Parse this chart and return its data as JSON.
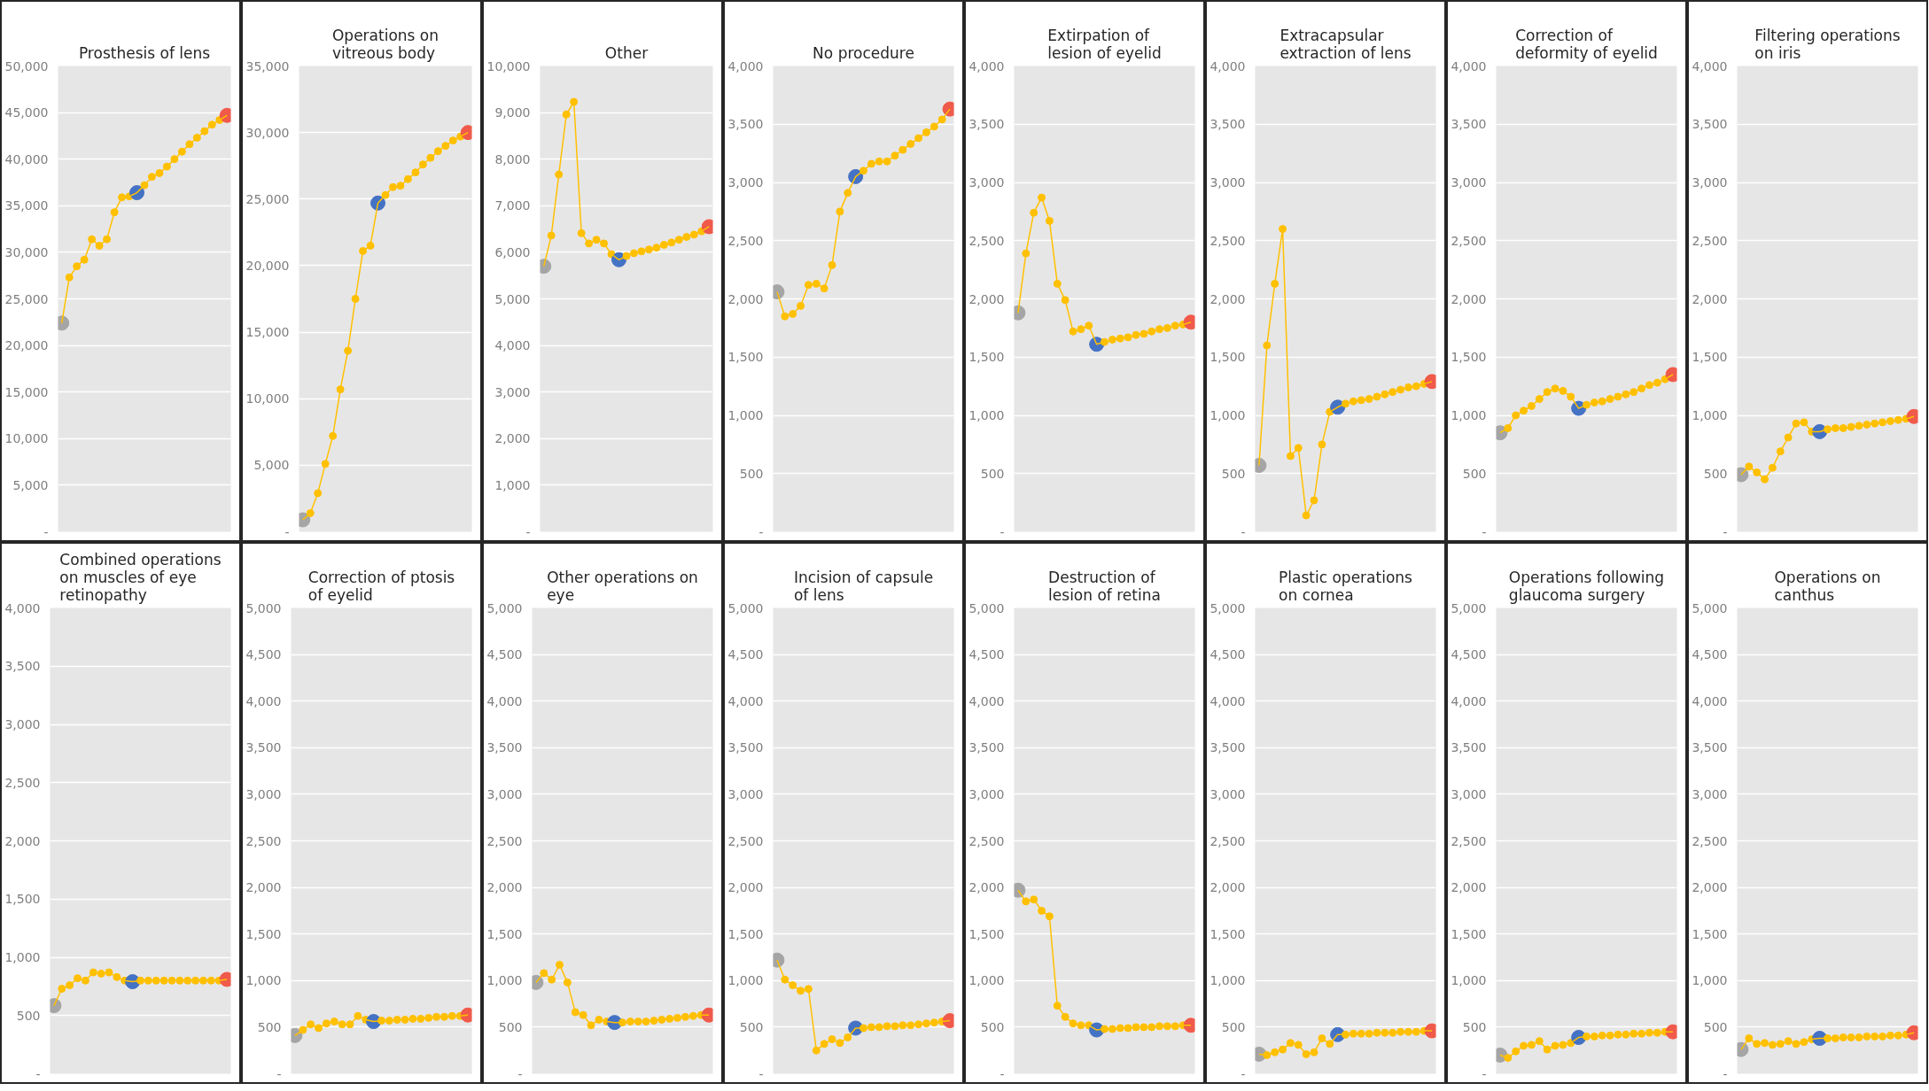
{
  "chart_data": [
    {
      "type": "line",
      "title": "Prosthesis of lens",
      "categories": [
        null,
        null,
        null,
        null,
        null,
        null,
        null,
        null,
        null,
        null,
        null,
        null,
        null,
        null,
        null,
        null,
        null,
        null,
        null,
        null,
        null,
        null,
        null
      ],
      "tick_labels": "y",
      "grid": "y",
      "marker": "circle",
      "ylim": [
        0,
        50000
      ],
      "yticks": [
        {
          "value": 0,
          "label": "-"
        },
        {
          "value": 5000,
          "label": "5,000"
        },
        {
          "value": 10000,
          "label": "10,000"
        },
        {
          "value": 15000,
          "label": "15,000"
        },
        {
          "value": 20000,
          "label": "20,000"
        },
        {
          "value": 25000,
          "label": "25,000"
        },
        {
          "value": 30000,
          "label": "30,000"
        },
        {
          "value": 35000,
          "label": "35,000"
        },
        {
          "value": 40000,
          "label": "40,000"
        },
        {
          "value": 45000,
          "label": "45,000"
        },
        {
          "value": 50000,
          "label": "50,000"
        }
      ],
      "series": [
        {
          "color": "#ffc000",
          "colors": [
            "#a5a5a5",
            "#ffc000",
            "#ffc000",
            "#ffc000",
            "#ffc000",
            "#ffc000",
            "#ffc000",
            "#ffc000",
            "#ffc000",
            "#ffc000",
            "#4472c4",
            "#ffc000",
            "#ffc000",
            "#ffc000",
            "#ffc000",
            "#ffc000",
            "#ffc000",
            "#ffc000",
            "#ffc000",
            "#ffc000",
            "#ffc000",
            "#ffc000",
            "#f05a4a"
          ],
          "values": [
            22400,
            27300,
            28500,
            29200,
            31400,
            30700,
            31400,
            34300,
            35900,
            36000,
            36400,
            37200,
            38100,
            38500,
            39200,
            40000,
            40800,
            41600,
            42300,
            43000,
            43700,
            44200,
            44700
          ]
        }
      ]
    },
    {
      "type": "line",
      "title": "Operations on vitreous body",
      "categories": [
        null,
        null,
        null,
        null,
        null,
        null,
        null,
        null,
        null,
        null,
        null,
        null,
        null,
        null,
        null,
        null,
        null,
        null,
        null,
        null,
        null,
        null,
        null
      ],
      "tick_labels": "y",
      "grid": "y",
      "marker": "circle",
      "ylim": [
        0,
        35000
      ],
      "yticks": [
        {
          "value": 0,
          "label": "-"
        },
        {
          "value": 5000,
          "label": "5,000"
        },
        {
          "value": 10000,
          "label": "10,000"
        },
        {
          "value": 15000,
          "label": "15,000"
        },
        {
          "value": 20000,
          "label": "20,000"
        },
        {
          "value": 25000,
          "label": "25,000"
        },
        {
          "value": 30000,
          "label": "30,000"
        },
        {
          "value": 35000,
          "label": "35,000"
        }
      ],
      "series": [
        {
          "color": "#ffc000",
          "colors": [
            "#a5a5a5",
            "#ffc000",
            "#ffc000",
            "#ffc000",
            "#ffc000",
            "#ffc000",
            "#ffc000",
            "#ffc000",
            "#ffc000",
            "#ffc000",
            "#4472c4",
            "#ffc000",
            "#ffc000",
            "#ffc000",
            "#ffc000",
            "#ffc000",
            "#ffc000",
            "#ffc000",
            "#ffc000",
            "#ffc000",
            "#ffc000",
            "#ffc000",
            "#f05a4a"
          ],
          "values": [
            900,
            1400,
            2900,
            5100,
            7200,
            10700,
            13600,
            17500,
            21100,
            21500,
            24700,
            25300,
            25900,
            26000,
            26500,
            27000,
            27600,
            28100,
            28600,
            29000,
            29400,
            29700,
            30000
          ]
        }
      ]
    },
    {
      "type": "line",
      "title": "Other",
      "categories": [
        null,
        null,
        null,
        null,
        null,
        null,
        null,
        null,
        null,
        null,
        null,
        null,
        null,
        null,
        null,
        null,
        null,
        null,
        null,
        null,
        null,
        null,
        null
      ],
      "tick_labels": "y",
      "grid": "y",
      "marker": "circle",
      "ylim": [
        0,
        10000
      ],
      "yticks": [
        {
          "value": 0,
          "label": "-"
        },
        {
          "value": 1000,
          "label": "1,000"
        },
        {
          "value": 2000,
          "label": "2,000"
        },
        {
          "value": 3000,
          "label": "3,000"
        },
        {
          "value": 4000,
          "label": "4,000"
        },
        {
          "value": 5000,
          "label": "5,000"
        },
        {
          "value": 6000,
          "label": "6,000"
        },
        {
          "value": 7000,
          "label": "7,000"
        },
        {
          "value": 8000,
          "label": "8,000"
        },
        {
          "value": 9000,
          "label": "9,000"
        },
        {
          "value": 10000,
          "label": "10,000"
        }
      ],
      "series": [
        {
          "color": "#ffc000",
          "colors": [
            "#a5a5a5",
            "#ffc000",
            "#ffc000",
            "#ffc000",
            "#ffc000",
            "#ffc000",
            "#ffc000",
            "#ffc000",
            "#ffc000",
            "#ffc000",
            "#4472c4",
            "#ffc000",
            "#ffc000",
            "#ffc000",
            "#ffc000",
            "#ffc000",
            "#ffc000",
            "#ffc000",
            "#ffc000",
            "#ffc000",
            "#ffc000",
            "#ffc000",
            "#f05a4a"
          ],
          "values": [
            5700,
            6360,
            7670,
            8960,
            9230,
            6410,
            6190,
            6270,
            6190,
            5960,
            5840,
            5920,
            5980,
            6020,
            6060,
            6100,
            6160,
            6210,
            6270,
            6330,
            6380,
            6450,
            6550
          ]
        }
      ]
    },
    {
      "type": "line",
      "title": "No procedure",
      "categories": [
        null,
        null,
        null,
        null,
        null,
        null,
        null,
        null,
        null,
        null,
        null,
        null,
        null,
        null,
        null,
        null,
        null,
        null,
        null,
        null,
        null,
        null,
        null
      ],
      "tick_labels": "y",
      "grid": "y",
      "marker": "circle",
      "ylim": [
        0,
        4000
      ],
      "yticks": [
        {
          "value": 0,
          "label": "-"
        },
        500,
        {
          "value": 1000,
          "label": "1,000"
        },
        {
          "value": 1500,
          "label": "1,500"
        },
        {
          "value": 2000,
          "label": "2,000"
        },
        {
          "value": 2500,
          "label": "2,500"
        },
        {
          "value": 3000,
          "label": "3,000"
        },
        {
          "value": 3500,
          "label": "3,500"
        },
        {
          "value": 4000,
          "label": "4,000"
        }
      ],
      "series": [
        {
          "color": "#ffc000",
          "colors": [
            "#a5a5a5",
            "#ffc000",
            "#ffc000",
            "#ffc000",
            "#ffc000",
            "#ffc000",
            "#ffc000",
            "#ffc000",
            "#ffc000",
            "#ffc000",
            "#4472c4",
            "#ffc000",
            "#ffc000",
            "#ffc000",
            "#ffc000",
            "#ffc000",
            "#ffc000",
            "#ffc000",
            "#ffc000",
            "#ffc000",
            "#ffc000",
            "#ffc000",
            "#f05a4a"
          ],
          "values": [
            2060,
            1850,
            1870,
            1940,
            2120,
            2130,
            2090,
            2290,
            2750,
            2910,
            3050,
            3100,
            3160,
            3180,
            3180,
            3230,
            3280,
            3330,
            3380,
            3430,
            3480,
            3540,
            3630
          ]
        }
      ]
    },
    {
      "type": "line",
      "title": "Extirpation of lesion of eyelid",
      "categories": [
        null,
        null,
        null,
        null,
        null,
        null,
        null,
        null,
        null,
        null,
        null,
        null,
        null,
        null,
        null,
        null,
        null,
        null,
        null,
        null,
        null,
        null,
        null
      ],
      "tick_labels": "y",
      "grid": "y",
      "marker": "circle",
      "ylim": [
        0,
        4000
      ],
      "yticks": [
        {
          "value": 0,
          "label": "-"
        },
        500,
        {
          "value": 1000,
          "label": "1,000"
        },
        {
          "value": 1500,
          "label": "1,500"
        },
        {
          "value": 2000,
          "label": "2,000"
        },
        {
          "value": 2500,
          "label": "2,500"
        },
        {
          "value": 3000,
          "label": "3,000"
        },
        {
          "value": 3500,
          "label": "3,500"
        },
        {
          "value": 4000,
          "label": "4,000"
        }
      ],
      "series": [
        {
          "color": "#ffc000",
          "colors": [
            "#a5a5a5",
            "#ffc000",
            "#ffc000",
            "#ffc000",
            "#ffc000",
            "#ffc000",
            "#ffc000",
            "#ffc000",
            "#ffc000",
            "#ffc000",
            "#4472c4",
            "#ffc000",
            "#ffc000",
            "#ffc000",
            "#ffc000",
            "#ffc000",
            "#ffc000",
            "#ffc000",
            "#ffc000",
            "#ffc000",
            "#ffc000",
            "#ffc000",
            "#f05a4a"
          ],
          "values": [
            1880,
            2390,
            2740,
            2870,
            2670,
            2130,
            1990,
            1720,
            1740,
            1770,
            1610,
            1630,
            1650,
            1660,
            1670,
            1690,
            1700,
            1720,
            1740,
            1750,
            1770,
            1780,
            1800
          ]
        }
      ]
    },
    {
      "type": "line",
      "title": "Extracapsular extraction of lens",
      "categories": [
        null,
        null,
        null,
        null,
        null,
        null,
        null,
        null,
        null,
        null,
        null,
        null,
        null,
        null,
        null,
        null,
        null,
        null,
        null,
        null,
        null,
        null,
        null
      ],
      "tick_labels": "y",
      "grid": "y",
      "marker": "circle",
      "ylim": [
        0,
        4000
      ],
      "yticks": [
        {
          "value": 0,
          "label": "-"
        },
        500,
        {
          "value": 1000,
          "label": "1,000"
        },
        {
          "value": 1500,
          "label": "1,500"
        },
        {
          "value": 2000,
          "label": "2,000"
        },
        {
          "value": 2500,
          "label": "2,500"
        },
        {
          "value": 3000,
          "label": "3,000"
        },
        {
          "value": 3500,
          "label": "3,500"
        },
        {
          "value": 4000,
          "label": "4,000"
        }
      ],
      "series": [
        {
          "color": "#ffc000",
          "colors": [
            "#a5a5a5",
            "#ffc000",
            "#ffc000",
            "#ffc000",
            "#ffc000",
            "#ffc000",
            "#ffc000",
            "#ffc000",
            "#ffc000",
            "#ffc000",
            "#4472c4",
            "#ffc000",
            "#ffc000",
            "#ffc000",
            "#ffc000",
            "#ffc000",
            "#ffc000",
            "#ffc000",
            "#ffc000",
            "#ffc000",
            "#ffc000",
            "#ffc000",
            "#f05a4a"
          ],
          "values": [
            570,
            1600,
            2130,
            2600,
            650,
            720,
            140,
            270,
            750,
            1030,
            1070,
            1100,
            1120,
            1130,
            1140,
            1160,
            1180,
            1200,
            1220,
            1240,
            1250,
            1270,
            1290
          ]
        }
      ]
    },
    {
      "type": "line",
      "title": "Correction of deformity of eyelid",
      "categories": [
        null,
        null,
        null,
        null,
        null,
        null,
        null,
        null,
        null,
        null,
        null,
        null,
        null,
        null,
        null,
        null,
        null,
        null,
        null,
        null,
        null,
        null,
        null
      ],
      "tick_labels": "y",
      "grid": "y",
      "marker": "circle",
      "ylim": [
        0,
        4000
      ],
      "yticks": [
        {
          "value": 0,
          "label": "-"
        },
        500,
        {
          "value": 1000,
          "label": "1,000"
        },
        {
          "value": 1500,
          "label": "1,500"
        },
        {
          "value": 2000,
          "label": "2,000"
        },
        {
          "value": 2500,
          "label": "2,500"
        },
        {
          "value": 3000,
          "label": "3,000"
        },
        {
          "value": 3500,
          "label": "3,500"
        },
        {
          "value": 4000,
          "label": "4,000"
        }
      ],
      "series": [
        {
          "color": "#ffc000",
          "colors": [
            "#a5a5a5",
            "#ffc000",
            "#ffc000",
            "#ffc000",
            "#ffc000",
            "#ffc000",
            "#ffc000",
            "#ffc000",
            "#ffc000",
            "#ffc000",
            "#4472c4",
            "#ffc000",
            "#ffc000",
            "#ffc000",
            "#ffc000",
            "#ffc000",
            "#ffc000",
            "#ffc000",
            "#ffc000",
            "#ffc000",
            "#ffc000",
            "#ffc000",
            "#f05a4a"
          ],
          "values": [
            850,
            890,
            1000,
            1040,
            1080,
            1140,
            1200,
            1230,
            1210,
            1160,
            1060,
            1090,
            1110,
            1120,
            1140,
            1160,
            1180,
            1200,
            1230,
            1260,
            1280,
            1310,
            1350
          ]
        }
      ]
    },
    {
      "type": "line",
      "title": "Filtering operations on iris",
      "categories": [
        null,
        null,
        null,
        null,
        null,
        null,
        null,
        null,
        null,
        null,
        null,
        null,
        null,
        null,
        null,
        null,
        null,
        null,
        null,
        null,
        null,
        null,
        null
      ],
      "tick_labels": "y",
      "grid": "y",
      "marker": "circle",
      "ylim": [
        0,
        4000
      ],
      "yticks": [
        {
          "value": 0,
          "label": "-"
        },
        500,
        {
          "value": 1000,
          "label": "1,000"
        },
        {
          "value": 1500,
          "label": "1,500"
        },
        {
          "value": 2000,
          "label": "2,000"
        },
        {
          "value": 2500,
          "label": "2,500"
        },
        {
          "value": 3000,
          "label": "3,000"
        },
        {
          "value": 3500,
          "label": "3,500"
        },
        {
          "value": 4000,
          "label": "4,000"
        }
      ],
      "series": [
        {
          "color": "#ffc000",
          "colors": [
            "#a5a5a5",
            "#ffc000",
            "#ffc000",
            "#ffc000",
            "#ffc000",
            "#ffc000",
            "#ffc000",
            "#ffc000",
            "#ffc000",
            "#ffc000",
            "#4472c4",
            "#ffc000",
            "#ffc000",
            "#ffc000",
            "#ffc000",
            "#ffc000",
            "#ffc000",
            "#ffc000",
            "#ffc000",
            "#ffc000",
            "#ffc000",
            "#ffc000",
            "#f05a4a"
          ],
          "values": [
            490,
            560,
            510,
            450,
            550,
            690,
            810,
            930,
            940,
            860,
            860,
            880,
            890,
            890,
            900,
            910,
            920,
            930,
            940,
            950,
            960,
            970,
            990
          ]
        }
      ]
    },
    {
      "type": "line",
      "title": "Combined operations on muscles of eye retinopathy",
      "categories": [
        null,
        null,
        null,
        null,
        null,
        null,
        null,
        null,
        null,
        null,
        null,
        null,
        null,
        null,
        null,
        null,
        null,
        null,
        null,
        null,
        null,
        null,
        null
      ],
      "tick_labels": "y",
      "grid": "y",
      "marker": "circle",
      "ylim": [
        0,
        4000
      ],
      "yticks": [
        {
          "value": 0,
          "label": "-"
        },
        500,
        {
          "value": 1000,
          "label": "1,000"
        },
        {
          "value": 1500,
          "label": "1,500"
        },
        {
          "value": 2000,
          "label": "2,000"
        },
        {
          "value": 2500,
          "label": "2,500"
        },
        {
          "value": 3000,
          "label": "3,000"
        },
        {
          "value": 3500,
          "label": "3,500"
        },
        {
          "value": 4000,
          "label": "4,000"
        }
      ],
      "series": [
        {
          "color": "#ffc000",
          "colors": [
            "#a5a5a5",
            "#ffc000",
            "#ffc000",
            "#ffc000",
            "#ffc000",
            "#ffc000",
            "#ffc000",
            "#ffc000",
            "#ffc000",
            "#ffc000",
            "#4472c4",
            "#ffc000",
            "#ffc000",
            "#ffc000",
            "#ffc000",
            "#ffc000",
            "#ffc000",
            "#ffc000",
            "#ffc000",
            "#ffc000",
            "#ffc000",
            "#ffc000",
            "#f05a4a"
          ],
          "values": [
            585,
            730,
            760,
            820,
            800,
            870,
            860,
            870,
            830,
            800,
            790,
            800,
            800,
            800,
            800,
            800,
            800,
            800,
            800,
            800,
            800,
            800,
            810
          ]
        }
      ]
    },
    {
      "type": "line",
      "title": "Correction of ptosis of eyelid",
      "categories": [
        null,
        null,
        null,
        null,
        null,
        null,
        null,
        null,
        null,
        null,
        null,
        null,
        null,
        null,
        null,
        null,
        null,
        null,
        null,
        null,
        null,
        null,
        null
      ],
      "tick_labels": "y",
      "grid": "y",
      "marker": "circle",
      "ylim": [
        0,
        5000
      ],
      "yticks": [
        {
          "value": 0,
          "label": "-"
        },
        500,
        {
          "value": 1000,
          "label": "1,000"
        },
        {
          "value": 1500,
          "label": "1,500"
        },
        {
          "value": 2000,
          "label": "2,000"
        },
        {
          "value": 2500,
          "label": "2,500"
        },
        {
          "value": 3000,
          "label": "3,000"
        },
        {
          "value": 3500,
          "label": "3,500"
        },
        {
          "value": 4000,
          "label": "4,000"
        },
        {
          "value": 4500,
          "label": "4,500"
        },
        {
          "value": 5000,
          "label": "5,000"
        }
      ],
      "series": [
        {
          "color": "#ffc000",
          "colors": [
            "#a5a5a5",
            "#ffc000",
            "#ffc000",
            "#ffc000",
            "#ffc000",
            "#ffc000",
            "#ffc000",
            "#ffc000",
            "#ffc000",
            "#ffc000",
            "#4472c4",
            "#ffc000",
            "#ffc000",
            "#ffc000",
            "#ffc000",
            "#ffc000",
            "#ffc000",
            "#ffc000",
            "#ffc000",
            "#ffc000",
            "#ffc000",
            "#ffc000",
            "#f05a4a"
          ],
          "values": [
            410,
            470,
            530,
            490,
            540,
            560,
            530,
            530,
            620,
            580,
            560,
            570,
            570,
            580,
            580,
            590,
            590,
            600,
            610,
            610,
            620,
            620,
            630
          ]
        }
      ]
    },
    {
      "type": "line",
      "title": "Other operations on eye",
      "categories": [
        null,
        null,
        null,
        null,
        null,
        null,
        null,
        null,
        null,
        null,
        null,
        null,
        null,
        null,
        null,
        null,
        null,
        null,
        null,
        null,
        null,
        null,
        null
      ],
      "tick_labels": "y",
      "grid": "y",
      "marker": "circle",
      "ylim": [
        0,
        5000
      ],
      "yticks": [
        {
          "value": 0,
          "label": "-"
        },
        500,
        {
          "value": 1000,
          "label": "1,000"
        },
        {
          "value": 1500,
          "label": "1,500"
        },
        {
          "value": 2000,
          "label": "2,000"
        },
        {
          "value": 2500,
          "label": "2,500"
        },
        {
          "value": 3000,
          "label": "3,000"
        },
        {
          "value": 3500,
          "label": "3,500"
        },
        {
          "value": 4000,
          "label": "4,000"
        },
        {
          "value": 4500,
          "label": "4,500"
        },
        {
          "value": 5000,
          "label": "5,000"
        }
      ],
      "series": [
        {
          "color": "#ffc000",
          "colors": [
            "#a5a5a5",
            "#ffc000",
            "#ffc000",
            "#ffc000",
            "#ffc000",
            "#ffc000",
            "#ffc000",
            "#ffc000",
            "#ffc000",
            "#ffc000",
            "#4472c4",
            "#ffc000",
            "#ffc000",
            "#ffc000",
            "#ffc000",
            "#ffc000",
            "#ffc000",
            "#ffc000",
            "#ffc000",
            "#ffc000",
            "#ffc000",
            "#ffc000",
            "#f05a4a"
          ],
          "values": [
            980,
            1080,
            1010,
            1170,
            980,
            660,
            630,
            520,
            580,
            560,
            550,
            550,
            560,
            560,
            560,
            570,
            580,
            590,
            600,
            610,
            620,
            630,
            630
          ]
        }
      ]
    },
    {
      "type": "line",
      "title": "Incision of capsule of lens",
      "categories": [
        null,
        null,
        null,
        null,
        null,
        null,
        null,
        null,
        null,
        null,
        null,
        null,
        null,
        null,
        null,
        null,
        null,
        null,
        null,
        null,
        null,
        null,
        null
      ],
      "tick_labels": "y",
      "grid": "y",
      "marker": "circle",
      "ylim": [
        0,
        5000
      ],
      "yticks": [
        {
          "value": 0,
          "label": "-"
        },
        500,
        {
          "value": 1000,
          "label": "1,000"
        },
        {
          "value": 1500,
          "label": "1,500"
        },
        {
          "value": 2000,
          "label": "2,000"
        },
        {
          "value": 2500,
          "label": "2,500"
        },
        {
          "value": 3000,
          "label": "3,000"
        },
        {
          "value": 3500,
          "label": "3,500"
        },
        {
          "value": 4000,
          "label": "4,000"
        },
        {
          "value": 4500,
          "label": "4,500"
        },
        {
          "value": 5000,
          "label": "5,000"
        }
      ],
      "series": [
        {
          "color": "#ffc000",
          "colors": [
            "#a5a5a5",
            "#ffc000",
            "#ffc000",
            "#ffc000",
            "#ffc000",
            "#ffc000",
            "#ffc000",
            "#ffc000",
            "#ffc000",
            "#ffc000",
            "#4472c4",
            "#ffc000",
            "#ffc000",
            "#ffc000",
            "#ffc000",
            "#ffc000",
            "#ffc000",
            "#ffc000",
            "#ffc000",
            "#ffc000",
            "#ffc000",
            "#ffc000",
            "#f05a4a"
          ],
          "values": [
            1220,
            1010,
            950,
            890,
            910,
            250,
            320,
            370,
            330,
            390,
            490,
            490,
            500,
            500,
            510,
            510,
            520,
            520,
            530,
            540,
            550,
            560,
            570
          ]
        }
      ]
    },
    {
      "type": "line",
      "title": "Destruction of lesion of retina",
      "categories": [
        null,
        null,
        null,
        null,
        null,
        null,
        null,
        null,
        null,
        null,
        null,
        null,
        null,
        null,
        null,
        null,
        null,
        null,
        null,
        null,
        null,
        null,
        null
      ],
      "tick_labels": "y",
      "grid": "y",
      "marker": "circle",
      "ylim": [
        0,
        5000
      ],
      "yticks": [
        {
          "value": 0,
          "label": "-"
        },
        500,
        {
          "value": 1000,
          "label": "1,000"
        },
        {
          "value": 1500,
          "label": "1,500"
        },
        {
          "value": 2000,
          "label": "2,000"
        },
        {
          "value": 2500,
          "label": "2,500"
        },
        {
          "value": 3000,
          "label": "3,000"
        },
        {
          "value": 3500,
          "label": "3,500"
        },
        {
          "value": 4000,
          "label": "4,000"
        },
        {
          "value": 4500,
          "label": "4,500"
        },
        {
          "value": 5000,
          "label": "5,000"
        }
      ],
      "series": [
        {
          "color": "#ffc000",
          "colors": [
            "#a5a5a5",
            "#ffc000",
            "#ffc000",
            "#ffc000",
            "#ffc000",
            "#ffc000",
            "#ffc000",
            "#ffc000",
            "#ffc000",
            "#ffc000",
            "#4472c4",
            "#ffc000",
            "#ffc000",
            "#ffc000",
            "#ffc000",
            "#ffc000",
            "#ffc000",
            "#ffc000",
            "#ffc000",
            "#ffc000",
            "#ffc000",
            "#ffc000",
            "#f05a4a"
          ],
          "values": [
            1970,
            1850,
            1870,
            1750,
            1690,
            730,
            610,
            540,
            520,
            520,
            470,
            480,
            480,
            490,
            490,
            500,
            500,
            500,
            510,
            510,
            510,
            520,
            520
          ]
        }
      ]
    },
    {
      "type": "line",
      "title": "Plastic operations on cornea",
      "categories": [
        null,
        null,
        null,
        null,
        null,
        null,
        null,
        null,
        null,
        null,
        null,
        null,
        null,
        null,
        null,
        null,
        null,
        null,
        null,
        null,
        null,
        null,
        null
      ],
      "tick_labels": "y",
      "grid": "y",
      "marker": "circle",
      "ylim": [
        0,
        5000
      ],
      "yticks": [
        {
          "value": 0,
          "label": "-"
        },
        500,
        {
          "value": 1000,
          "label": "1,000"
        },
        {
          "value": 1500,
          "label": "1,500"
        },
        {
          "value": 2000,
          "label": "2,000"
        },
        {
          "value": 2500,
          "label": "2,500"
        },
        {
          "value": 3000,
          "label": "3,000"
        },
        {
          "value": 3500,
          "label": "3,500"
        },
        {
          "value": 4000,
          "label": "4,000"
        },
        {
          "value": 4500,
          "label": "4,500"
        },
        {
          "value": 5000,
          "label": "5,000"
        }
      ],
      "series": [
        {
          "color": "#ffc000",
          "colors": [
            "#a5a5a5",
            "#ffc000",
            "#ffc000",
            "#ffc000",
            "#ffc000",
            "#ffc000",
            "#ffc000",
            "#ffc000",
            "#ffc000",
            "#ffc000",
            "#4472c4",
            "#ffc000",
            "#ffc000",
            "#ffc000",
            "#ffc000",
            "#ffc000",
            "#ffc000",
            "#ffc000",
            "#ffc000",
            "#ffc000",
            "#ffc000",
            "#ffc000",
            "#f05a4a"
          ],
          "values": [
            210,
            200,
            230,
            260,
            330,
            310,
            210,
            230,
            380,
            320,
            420,
            420,
            430,
            430,
            430,
            440,
            440,
            440,
            450,
            450,
            450,
            460,
            460
          ]
        }
      ]
    },
    {
      "type": "line",
      "title": "Operations following glaucoma surgery",
      "categories": [
        null,
        null,
        null,
        null,
        null,
        null,
        null,
        null,
        null,
        null,
        null,
        null,
        null,
        null,
        null,
        null,
        null,
        null,
        null,
        null,
        null,
        null,
        null
      ],
      "tick_labels": "y",
      "grid": "y",
      "marker": "circle",
      "ylim": [
        0,
        5000
      ],
      "yticks": [
        {
          "value": 0,
          "label": "-"
        },
        500,
        {
          "value": 1000,
          "label": "1,000"
        },
        {
          "value": 1500,
          "label": "1,500"
        },
        {
          "value": 2000,
          "label": "2,000"
        },
        {
          "value": 2500,
          "label": "2,500"
        },
        {
          "value": 3000,
          "label": "3,000"
        },
        {
          "value": 3500,
          "label": "3,500"
        },
        {
          "value": 4000,
          "label": "4,000"
        },
        {
          "value": 4500,
          "label": "4,500"
        },
        {
          "value": 5000,
          "label": "5,000"
        }
      ],
      "series": [
        {
          "color": "#ffc000",
          "colors": [
            "#a5a5a5",
            "#ffc000",
            "#ffc000",
            "#ffc000",
            "#ffc000",
            "#ffc000",
            "#ffc000",
            "#ffc000",
            "#ffc000",
            "#ffc000",
            "#4472c4",
            "#ffc000",
            "#ffc000",
            "#ffc000",
            "#ffc000",
            "#ffc000",
            "#ffc000",
            "#ffc000",
            "#ffc000",
            "#ffc000",
            "#ffc000",
            "#ffc000",
            "#f05a4a"
          ],
          "values": [
            200,
            170,
            240,
            300,
            310,
            350,
            260,
            300,
            310,
            330,
            390,
            400,
            400,
            410,
            410,
            420,
            420,
            430,
            430,
            440,
            440,
            450,
            450
          ]
        }
      ]
    },
    {
      "type": "line",
      "title": "Operations on canthus",
      "categories": [
        null,
        null,
        null,
        null,
        null,
        null,
        null,
        null,
        null,
        null,
        null,
        null,
        null,
        null,
        null,
        null,
        null,
        null,
        null,
        null,
        null,
        null,
        null
      ],
      "tick_labels": "y",
      "grid": "y",
      "marker": "circle",
      "ylim": [
        0,
        5000
      ],
      "yticks": [
        {
          "value": 0,
          "label": "-"
        },
        500,
        {
          "value": 1000,
          "label": "1,000"
        },
        {
          "value": 1500,
          "label": "1,500"
        },
        {
          "value": 2000,
          "label": "2,000"
        },
        {
          "value": 2500,
          "label": "2,500"
        },
        {
          "value": 3000,
          "label": "3,000"
        },
        {
          "value": 3500,
          "label": "3,500"
        },
        {
          "value": 4000,
          "label": "4,000"
        },
        {
          "value": 4500,
          "label": "4,500"
        },
        {
          "value": 5000,
          "label": "5,000"
        }
      ],
      "series": [
        {
          "color": "#ffc000",
          "colors": [
            "#a5a5a5",
            "#ffc000",
            "#ffc000",
            "#ffc000",
            "#ffc000",
            "#ffc000",
            "#ffc000",
            "#ffc000",
            "#ffc000",
            "#ffc000",
            "#4472c4",
            "#ffc000",
            "#ffc000",
            "#ffc000",
            "#ffc000",
            "#ffc000",
            "#ffc000",
            "#ffc000",
            "#ffc000",
            "#ffc000",
            "#ffc000",
            "#ffc000",
            "#f05a4a"
          ],
          "values": [
            260,
            380,
            320,
            330,
            310,
            320,
            350,
            320,
            340,
            370,
            380,
            380,
            380,
            390,
            390,
            390,
            400,
            400,
            400,
            410,
            410,
            420,
            440
          ]
        }
      ]
    }
  ]
}
